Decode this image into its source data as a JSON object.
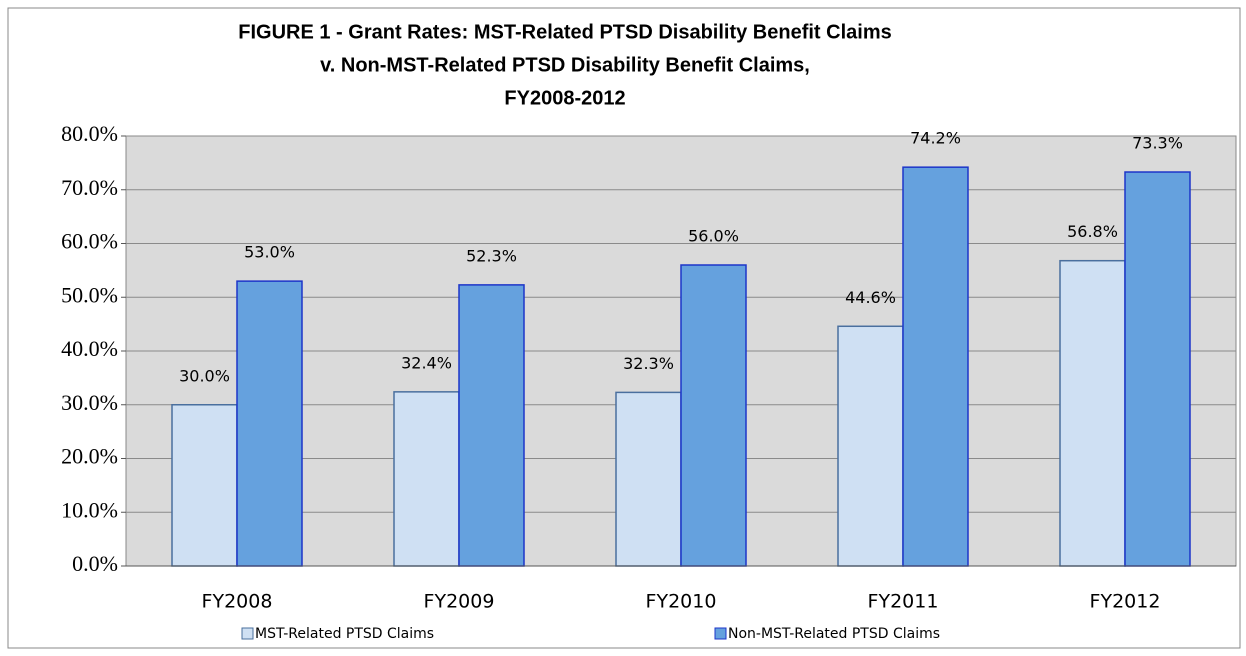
{
  "chart_data": {
    "type": "bar",
    "title": [
      "FIGURE 1 - Grant Rates: MST-Related PTSD Disability Benefit Claims",
      "v. Non-MST-Related PTSD Disability Benefit Claims,",
      "FY2008-2012"
    ],
    "categories": [
      "FY2008",
      "FY2009",
      "FY2010",
      "FY2011",
      "FY2012"
    ],
    "series": [
      {
        "name": "MST-Related PTSD Claims",
        "color": "#cfe0f3",
        "edge": "#4a6f9e",
        "values": [
          30.0,
          32.4,
          32.3,
          44.6,
          56.8
        ],
        "value_labels": [
          "30.0%",
          "32.4%",
          "32.3%",
          "44.6%",
          "56.8%"
        ]
      },
      {
        "name": "Non-MST-Related PTSD Claims",
        "color": "#65a1de",
        "edge": "#1d35c9",
        "values": [
          53.0,
          52.3,
          56.0,
          74.2,
          73.3
        ],
        "value_labels": [
          "53.0%",
          "52.3%",
          "56.0%",
          "74.2%",
          "73.3%"
        ]
      }
    ],
    "ylim": [
      0,
      80
    ],
    "yticks": [
      {
        "value": 0,
        "label": "0.0%"
      },
      {
        "value": 10,
        "label": "10.0%"
      },
      {
        "value": 20,
        "label": "20.0%"
      },
      {
        "value": 30,
        "label": "30.0%"
      },
      {
        "value": 40,
        "label": "40.0%"
      },
      {
        "value": 50,
        "label": "50.0%"
      },
      {
        "value": 60,
        "label": "60.0%"
      },
      {
        "value": 70,
        "label": "70.0%"
      },
      {
        "value": 80,
        "label": "80.0%"
      }
    ],
    "grid": true,
    "legend": "bottom"
  }
}
